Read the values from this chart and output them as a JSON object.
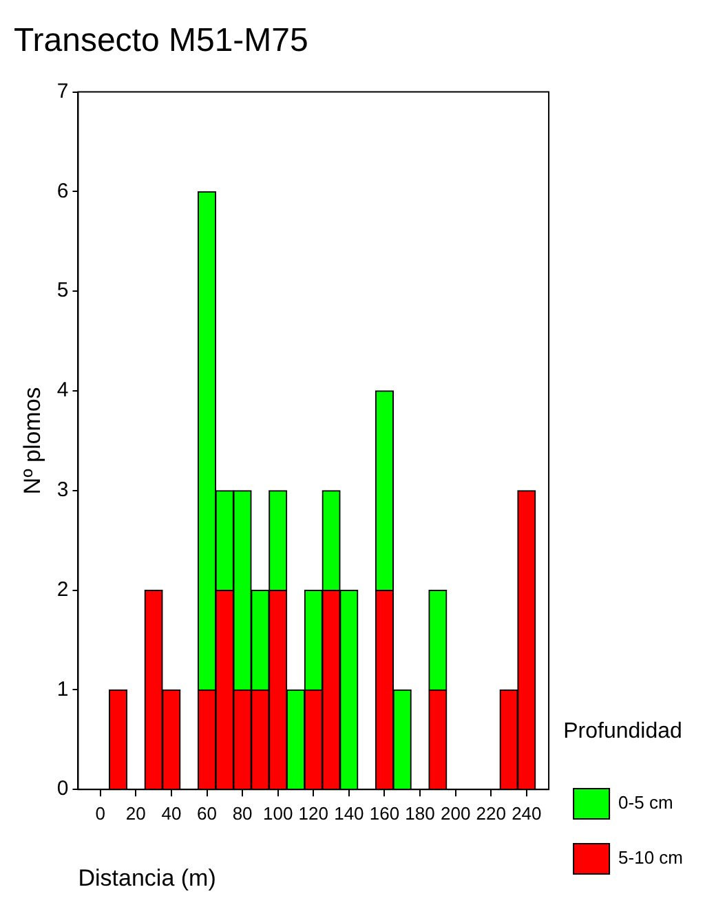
{
  "chart_data": {
    "type": "bar",
    "title": "Transecto M51-M75",
    "xlabel": "Distancia (m)",
    "ylabel": "Nº plomos",
    "legend_title": "Profundidad",
    "stacked": true,
    "x": [
      10,
      30,
      40,
      60,
      70,
      80,
      90,
      100,
      110,
      120,
      130,
      140,
      160,
      170,
      190,
      230,
      240
    ],
    "series": [
      {
        "name": "5-10 cm",
        "color": "#ff0000",
        "values": [
          1,
          2,
          1,
          1,
          2,
          1,
          1,
          2,
          0,
          1,
          2,
          0,
          2,
          0,
          1,
          1,
          3
        ]
      },
      {
        "name": "0-5 cm",
        "color": "#00ff00",
        "values": [
          0,
          0,
          0,
          5,
          1,
          2,
          1,
          1,
          1,
          1,
          1,
          2,
          2,
          1,
          1,
          0,
          0
        ]
      }
    ],
    "xlim": [
      -12.5,
      252.5
    ],
    "xticks": [
      0,
      20,
      40,
      60,
      80,
      100,
      120,
      140,
      160,
      180,
      200,
      220,
      240
    ],
    "ylim": [
      0,
      7
    ],
    "yticks": [
      0,
      1,
      2,
      3,
      4,
      5,
      6,
      7
    ],
    "grid": false,
    "legend": "right"
  }
}
